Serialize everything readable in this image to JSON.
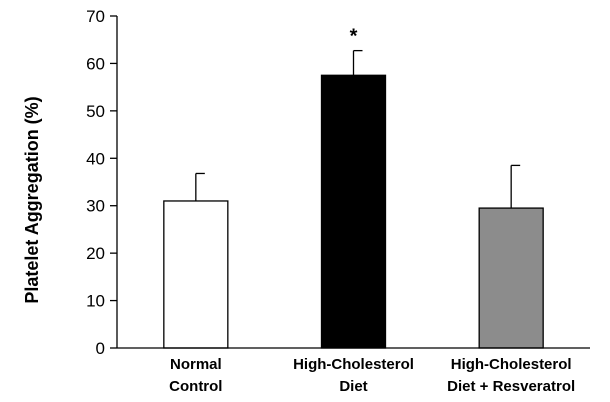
{
  "chart_data": {
    "type": "bar",
    "title": "",
    "xlabel": "",
    "ylabel": "Platelet Aggregation (%)",
    "ylim": [
      0,
      70
    ],
    "yticks": [
      0,
      10,
      20,
      30,
      40,
      50,
      60,
      70
    ],
    "categories": [
      [
        "Normal",
        "Control"
      ],
      [
        "High-Cholesterol",
        "Diet"
      ],
      [
        "High-Cholesterol",
        "Diet + Resveratrol"
      ]
    ],
    "values": [
      31,
      57.5,
      29.5
    ],
    "error_upper": [
      5.8,
      5.2,
      9.0
    ],
    "bar_colors": [
      "#ffffff",
      "#000000",
      "#8c8c8c"
    ],
    "bar_outline": "#000000",
    "annotations": [
      "",
      "*",
      ""
    ],
    "grid": false,
    "legend": "none"
  }
}
